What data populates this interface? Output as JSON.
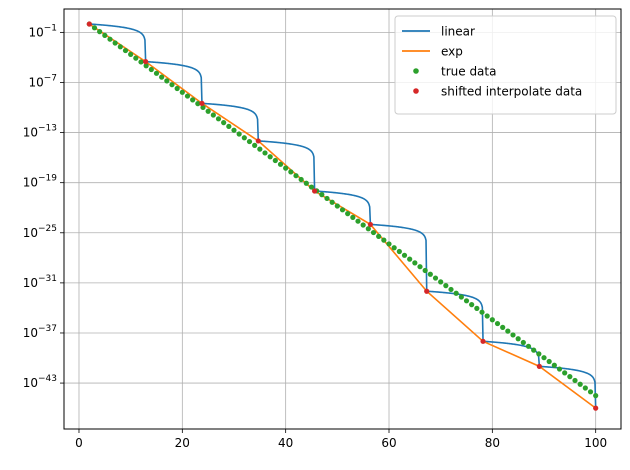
{
  "chart_data": {
    "type": "line",
    "title": "",
    "xlabel": "",
    "ylabel": "",
    "yscale": "log",
    "xlim": [
      -2.9,
      104.9
    ],
    "ylim_exp": [
      -48.5,
      1.8
    ],
    "grid": true,
    "legend_position": "top-right",
    "x_ticks": [
      0,
      20,
      40,
      60,
      80,
      100
    ],
    "x_tick_labels": [
      "0",
      "20",
      "40",
      "60",
      "80",
      "100"
    ],
    "y_ticks_exp": [
      -1,
      -7,
      -13,
      -19,
      -25,
      -31,
      -37,
      -43
    ],
    "y_tick_labels": [
      {
        "base": "10",
        "exp": "−1"
      },
      {
        "base": "10",
        "exp": "−7"
      },
      {
        "base": "10",
        "exp": "−13"
      },
      {
        "base": "10",
        "exp": "−19"
      },
      {
        "base": "10",
        "exp": "−25"
      },
      {
        "base": "10",
        "exp": "−31"
      },
      {
        "base": "10",
        "exp": "−37"
      },
      {
        "base": "10",
        "exp": "−43"
      }
    ],
    "series": [
      {
        "name": "linear",
        "kind": "line",
        "color": "#1f77b4"
      },
      {
        "name": "exp",
        "kind": "line",
        "color": "#ff7f0e"
      },
      {
        "name": "true data",
        "kind": "scatter",
        "color": "#2ca02c"
      },
      {
        "name": "shifted interpolate data",
        "kind": "scatter",
        "color": "#d62728"
      }
    ],
    "true_data": {
      "x_start": 2,
      "x_end": 100,
      "x_step": 1,
      "log10_y_at_start": 0,
      "log10_y_at_end": -44.5
    },
    "shifted_points": [
      {
        "x": 2.0,
        "log10_y": 0.0
      },
      {
        "x": 12.9,
        "log10_y": -4.5
      },
      {
        "x": 23.8,
        "log10_y": -9.5
      },
      {
        "x": 34.7,
        "log10_y": -14.0
      },
      {
        "x": 45.6,
        "log10_y": -20.0
      },
      {
        "x": 56.4,
        "log10_y": -24.0
      },
      {
        "x": 67.3,
        "log10_y": -32.0
      },
      {
        "x": 78.2,
        "log10_y": -38.0
      },
      {
        "x": 89.1,
        "log10_y": -41.0
      },
      {
        "x": 100.0,
        "log10_y": -46.0
      }
    ]
  }
}
